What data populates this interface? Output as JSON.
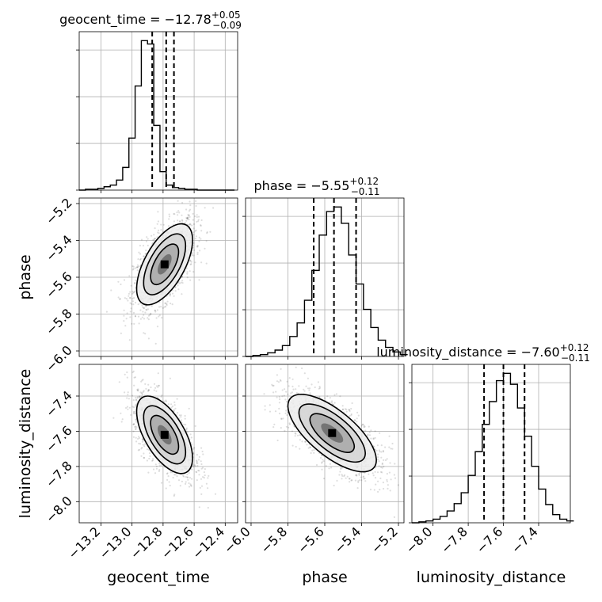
{
  "chart_data": {
    "type": "corner",
    "parameters": [
      "geocent_time",
      "phase",
      "luminosity_distance"
    ],
    "titles": [
      {
        "param": "geocent_time",
        "label": "geocent_time = ",
        "median": "−12.78",
        "upper": "+0.05",
        "lower": "−0.09"
      },
      {
        "param": "phase",
        "label": "phase = ",
        "median": "−5.55",
        "upper": "+0.12",
        "lower": "−0.11"
      },
      {
        "param": "luminosity_distance",
        "label": "luminosity_distance = ",
        "median": "−7.60",
        "upper": "+0.12",
        "lower": "−0.11"
      }
    ],
    "axis_labels": {
      "x": [
        "geocent_time",
        "phase",
        "luminosity_distance"
      ],
      "y": [
        "phase",
        "luminosity_distance"
      ]
    },
    "ranges": {
      "geocent_time": [
        -13.34,
        -12.32
      ],
      "phase": [
        -6.03,
        -5.17
      ],
      "luminosity_distance": [
        -8.12,
        -7.22
      ]
    },
    "ticks": {
      "geocent_time": [
        -13.2,
        -13.0,
        -12.8,
        -12.6,
        -12.4
      ],
      "phase": [
        -6.0,
        -5.8,
        -5.6,
        -5.4,
        -5.2
      ],
      "luminosity_distance_x": [
        -8.0,
        -7.8,
        -7.6,
        -7.4
      ],
      "luminosity_distance_y": [
        -8.0,
        -7.8,
        -7.6,
        -7.4
      ]
    },
    "tick_labels": {
      "geocent_time": [
        "−13.2",
        "−13.0",
        "−12.8",
        "−12.6",
        "−12.4"
      ],
      "phase_x": [
        "−6.0",
        "−5.8",
        "−5.6",
        "−5.4",
        "−5.2"
      ],
      "phase_y": [
        "−6.0",
        "−5.8",
        "−5.6",
        "−5.4",
        "−5.2"
      ],
      "luminosity_distance_x": [
        "−8.0",
        "−7.8",
        "−7.6",
        "−7.4"
      ],
      "luminosity_distance_y": [
        "−8.0",
        "−7.8",
        "−7.6",
        "−7.4"
      ]
    },
    "quantiles": {
      "geocent_time": [
        -12.87,
        -12.78,
        -12.73
      ],
      "phase": [
        -5.66,
        -5.55,
        -5.43
      ],
      "luminosity_distance": [
        -7.71,
        -7.6,
        -7.48
      ]
    },
    "histograms": {
      "geocent_time": {
        "bin_start": -13.34,
        "bin_width": 0.04,
        "counts": [
          0,
          1,
          1,
          2,
          4,
          6,
          12,
          27,
          62,
          124,
          178,
          174,
          77,
          22,
          6,
          3,
          2,
          1,
          1,
          0,
          0,
          0,
          0,
          0,
          0
        ]
      },
      "phase": {
        "bin_start": -6.03,
        "bin_width": 0.04,
        "counts": [
          0,
          1,
          2,
          4,
          7,
          12,
          22,
          37,
          62,
          95,
          134,
          160,
          165,
          147,
          112,
          80,
          52,
          32,
          18,
          10,
          5,
          2
        ]
      },
      "luminosity_distance": {
        "bin_start": -8.12,
        "bin_width": 0.04,
        "counts": [
          0,
          1,
          2,
          4,
          7,
          13,
          21,
          33,
          52,
          78,
          108,
          133,
          156,
          164,
          152,
          126,
          95,
          62,
          37,
          20,
          9,
          4,
          2
        ]
      }
    },
    "pairs": [
      {
        "x": "geocent_time",
        "y": "phase",
        "center": [
          -12.79,
          -5.53
        ],
        "sx": 0.09,
        "sy": 0.11,
        "rho": 0.6
      },
      {
        "x": "geocent_time",
        "y": "luminosity_distance",
        "center": [
          -12.79,
          -7.62
        ],
        "sx": 0.09,
        "sy": 0.11,
        "rho": -0.6
      },
      {
        "x": "phase",
        "y": "luminosity_distance",
        "center": [
          -5.56,
          -7.61
        ],
        "sx": 0.12,
        "sy": 0.11,
        "rho": -0.7
      }
    ],
    "contour_levels_sigma": [
      0.5,
      1.0,
      1.5,
      2.0
    ],
    "grid": true
  }
}
